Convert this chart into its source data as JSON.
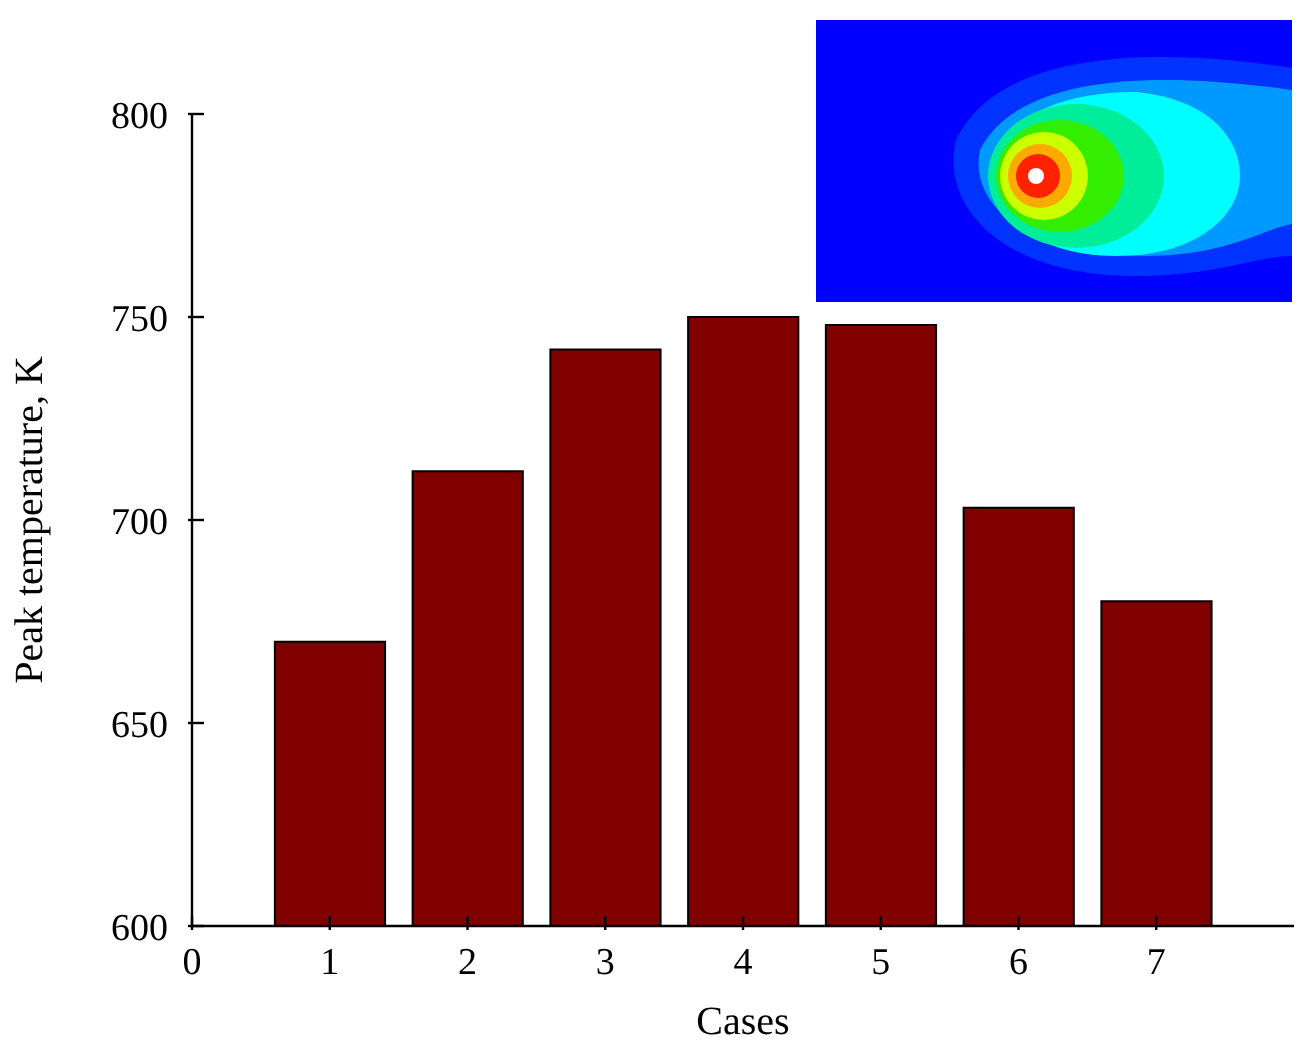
{
  "chart_data": {
    "type": "bar",
    "xlabel": "Cases",
    "ylabel": "Peak temperature, K",
    "x": [
      1,
      2,
      3,
      4,
      5,
      6,
      7
    ],
    "values": [
      670,
      712,
      742,
      750,
      748,
      703,
      680
    ],
    "color": "#800000",
    "xlim": [
      0,
      8
    ],
    "xticks": [
      0,
      1,
      2,
      3,
      4,
      5,
      6,
      7
    ],
    "ylim": [
      600,
      800
    ],
    "yticks": [
      600,
      650,
      700,
      750,
      800
    ],
    "grid": false,
    "legend": false
  }
}
